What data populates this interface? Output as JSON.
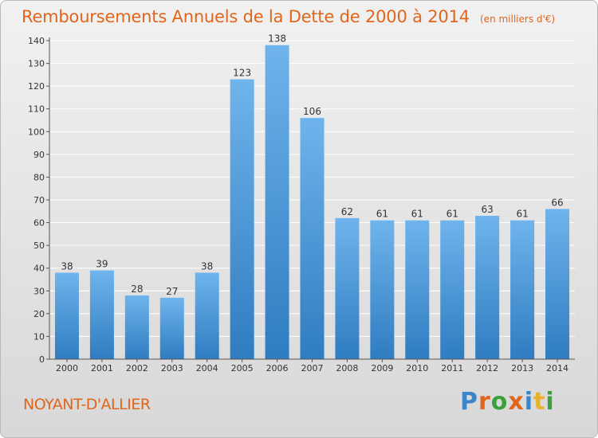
{
  "header": {
    "title": "Remboursements Annuels de la Dette de 2000 à 2014",
    "unit": "(en milliers d'€)"
  },
  "footer": {
    "commune": "NOYANT-D'ALLIER",
    "brand_letters": [
      "P",
      "r",
      "o",
      "x",
      "i",
      "t",
      "i"
    ],
    "brand_colors": [
      "#3b86c8",
      "#e0661b",
      "#3ba23b",
      "#e0661b",
      "#3b86c8",
      "#e8b12a",
      "#3ba23b"
    ]
  },
  "colors": {
    "bar_top": "#6fb4ec",
    "bar_bottom": "#2f7cc1",
    "grid": "#ffffff",
    "axis": "#555555"
  },
  "chart_data": {
    "type": "bar",
    "categories": [
      "2000",
      "2001",
      "2002",
      "2003",
      "2004",
      "2005",
      "2006",
      "2007",
      "2008",
      "2009",
      "2010",
      "2011",
      "2012",
      "2013",
      "2014"
    ],
    "values": [
      38,
      39,
      28,
      27,
      38,
      123,
      138,
      106,
      62,
      61,
      61,
      61,
      63,
      61,
      66
    ],
    "ylim": [
      0,
      140
    ],
    "yticks": [
      0,
      10,
      20,
      30,
      40,
      50,
      60,
      70,
      80,
      90,
      100,
      110,
      120,
      130,
      140
    ],
    "grid": true,
    "title": "Remboursements Annuels de la Dette de 2000 à 2014",
    "xlabel": "",
    "ylabel": ""
  }
}
